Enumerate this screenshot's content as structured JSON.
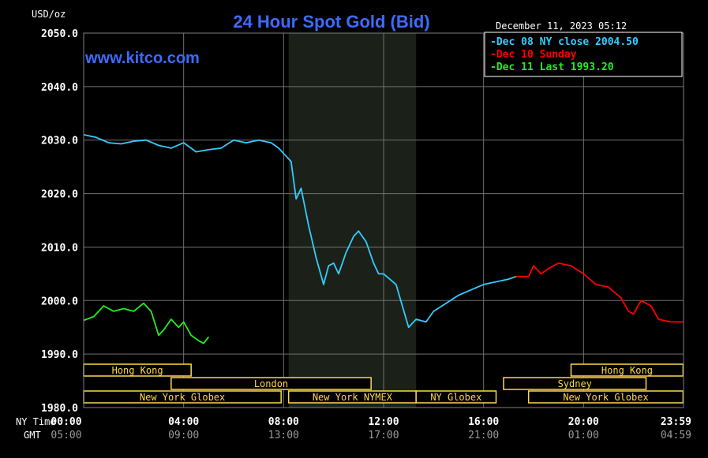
{
  "chart_data": {
    "type": "line",
    "title": "24 Hour Spot Gold (Bid)",
    "site": "www.kitco.com",
    "ylabel": "USD/oz",
    "timestamp": "December 11, 2023 05:12",
    "ylim": [
      1980,
      2050
    ],
    "yticks": [
      "2050.0",
      "2040.0",
      "2030.0",
      "2020.0",
      "2010.0",
      "2000.0",
      "1990.0",
      "1980.0"
    ],
    "xticks_ny": [
      "00:00",
      "04:00",
      "08:00",
      "12:00",
      "16:00",
      "20:00",
      "23:59"
    ],
    "xticks_gmt": [
      "05:00",
      "09:00",
      "13:00",
      "17:00",
      "21:00",
      "01:00",
      "04:59"
    ],
    "ny_time_label": "NY Time",
    "gmt_label": "GMT",
    "colors": {
      "dec08": "#33ccff",
      "dec10": "#ff0000",
      "dec11": "#22ee22",
      "grid": "#707070",
      "title": "#3d6bff",
      "session": "#ffd84a"
    },
    "legend": [
      {
        "label": "Dec 08 NY close 2004.50",
        "color": "#33ccff"
      },
      {
        "label": "Dec 10 Sunday",
        "color": "#ff0000"
      },
      {
        "label": "Dec 11 Last 1993.20",
        "color": "#22ee22"
      }
    ],
    "series": [
      {
        "name": "Dec 08 NY close 2004.50",
        "x": [
          0,
          0.5,
          1,
          1.5,
          2,
          2.5,
          3,
          3.5,
          4,
          4.5,
          5,
          5.5,
          6,
          6.5,
          7,
          7.5,
          7.8,
          8,
          8.3,
          8.5,
          8.7,
          9,
          9.3,
          9.6,
          9.8,
          10,
          10.2,
          10.5,
          10.8,
          11,
          11.3,
          11.6,
          11.8,
          12,
          12.5,
          13,
          13.3,
          13.7,
          14,
          14.5,
          15,
          15.5,
          16,
          16.5,
          17,
          17.3
        ],
        "y": [
          2031,
          2030.5,
          2029.5,
          2029.3,
          2029.8,
          2030,
          2029,
          2028.5,
          2029.5,
          2027.8,
          2028.2,
          2028.5,
          2030,
          2029.5,
          2030,
          2029.5,
          2028.5,
          2027.5,
          2026,
          2019,
          2021,
          2014,
          2008,
          2003,
          2006.5,
          2007,
          2005,
          2009,
          2012,
          2013,
          2011,
          2007,
          2005,
          2005,
          2003,
          1995,
          1996.5,
          1996,
          1998,
          1999.5,
          2001,
          2002,
          2003,
          2003.5,
          2004,
          2004.5
        ]
      },
      {
        "name": "Dec 10 Sunday",
        "x": [
          17.3,
          17.8,
          18,
          18.3,
          18.6,
          19,
          19.5,
          20,
          20.5,
          21,
          21.5,
          21.8,
          22,
          22.3,
          22.7,
          23,
          23.5,
          23.98
        ],
        "y": [
          2004.5,
          2004.5,
          2006.5,
          2005,
          2006,
          2007,
          2006.5,
          2005,
          2003,
          2002.5,
          2000.5,
          1998,
          1997.5,
          2000,
          1999,
          1996.5,
          1996,
          1996
        ]
      },
      {
        "name": "Dec 11 Last 1993.20",
        "x": [
          0,
          0.4,
          0.8,
          1.2,
          1.6,
          2,
          2.4,
          2.7,
          3,
          3.2,
          3.5,
          3.8,
          4,
          4.3,
          4.6,
          4.8,
          5
        ],
        "y": [
          1996.3,
          1997,
          1999,
          1998,
          1998.5,
          1998,
          1999.5,
          1998,
          1993.5,
          1994.5,
          1996.5,
          1995,
          1996,
          1993.5,
          1992.5,
          1992,
          1993.2
        ]
      }
    ],
    "sessions": [
      {
        "name": "Hong Kong",
        "start": 0,
        "end": 4.3,
        "row": 0
      },
      {
        "name": "London",
        "start": 3.5,
        "end": 11.5,
        "row": 1
      },
      {
        "name": "New York Globex",
        "start": 0,
        "end": 7.9,
        "row": 2
      },
      {
        "name": "New York NYMEX",
        "start": 8.2,
        "end": 13.3,
        "row": 2
      },
      {
        "name": "NY Globex",
        "start": 13.3,
        "end": 16.5,
        "row": 2
      },
      {
        "name": "Hong Kong",
        "start": 19.5,
        "end": 23.98,
        "row": 0
      },
      {
        "name": "Sydney",
        "start": 16.8,
        "end": 22.5,
        "row": 1
      },
      {
        "name": "New York Globex",
        "start": 17.8,
        "end": 23.98,
        "row": 2
      }
    ],
    "shaded_region": {
      "start": 8.2,
      "end": 13.3
    },
    "grid": true,
    "legend_position": "top-right"
  }
}
